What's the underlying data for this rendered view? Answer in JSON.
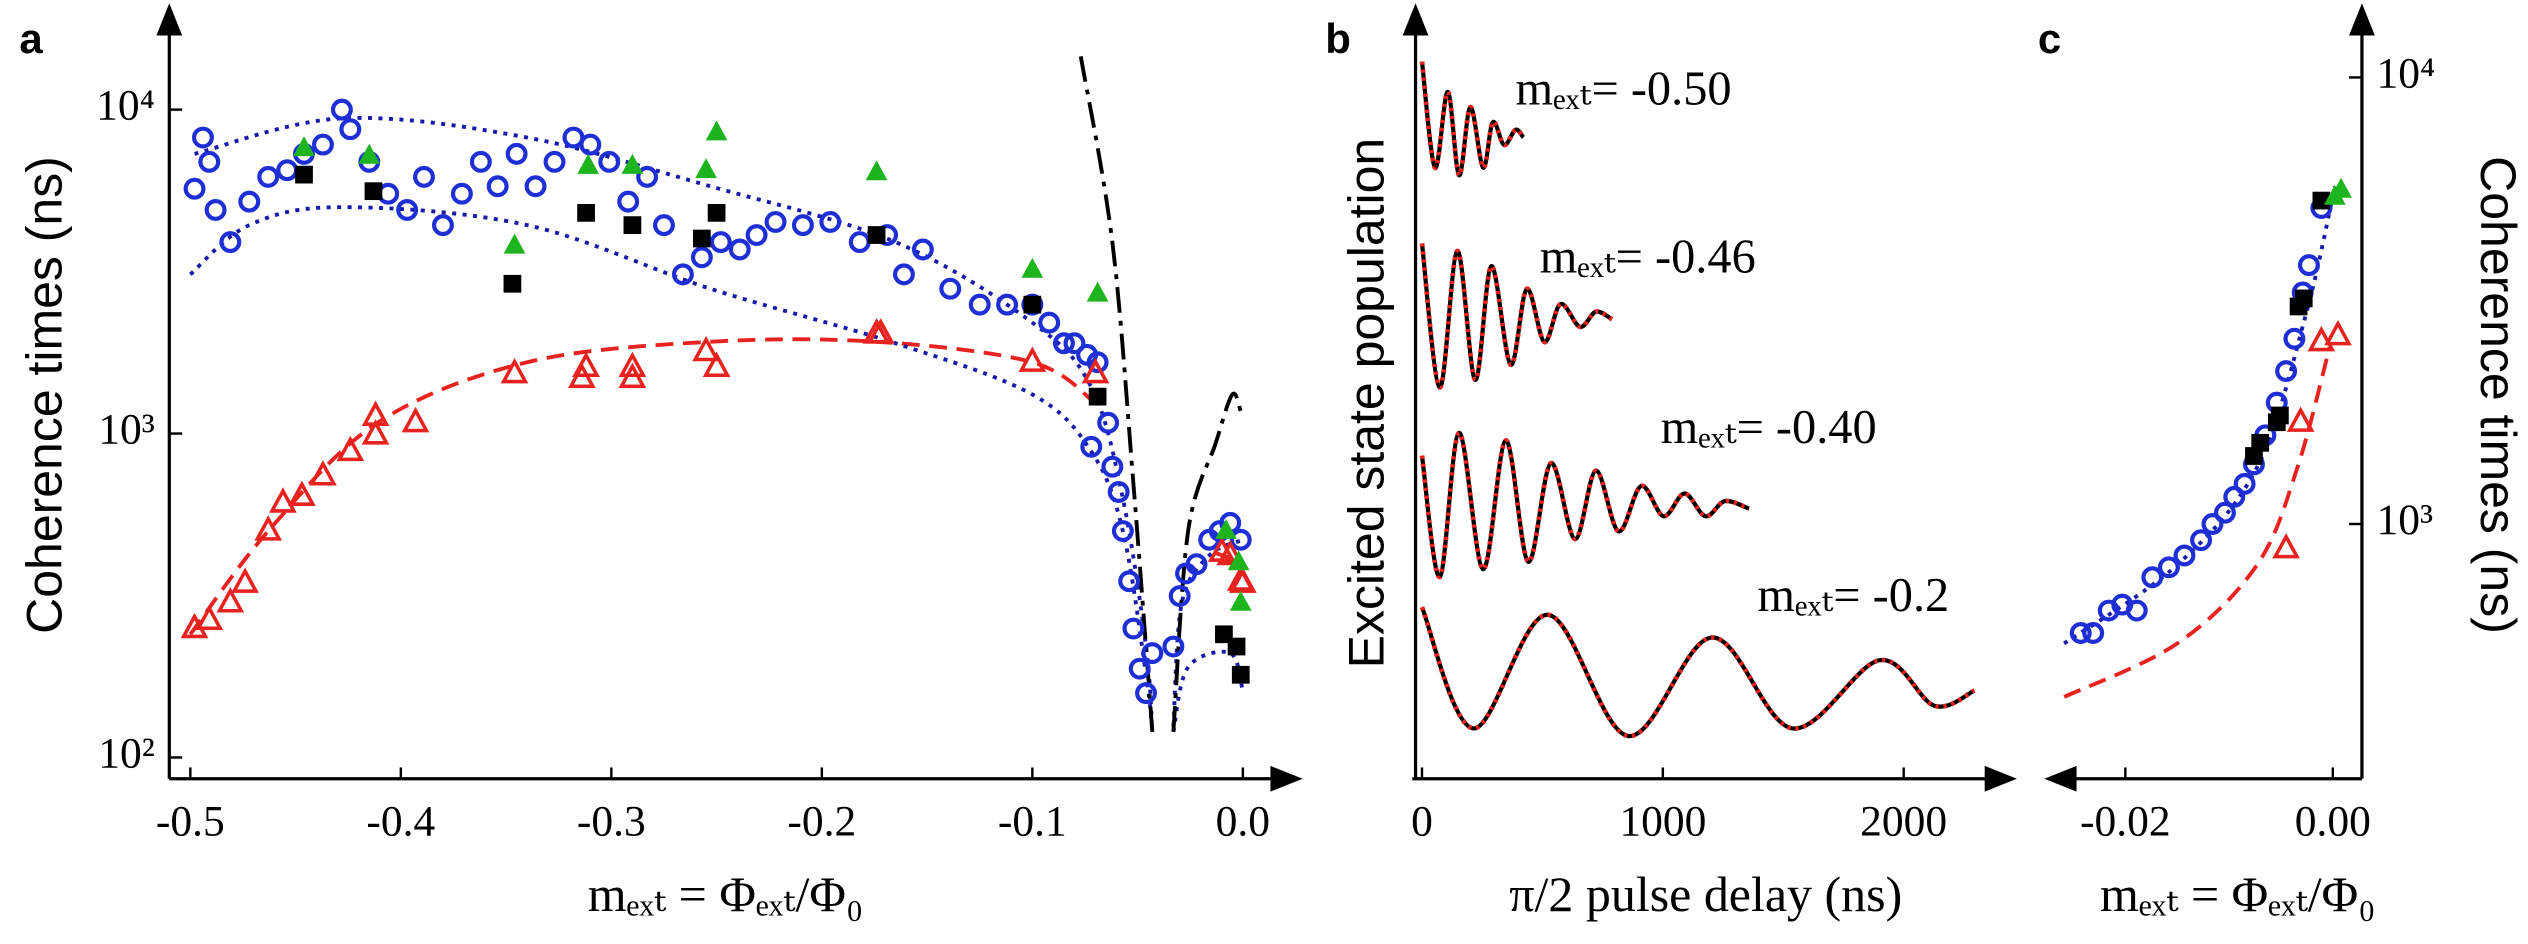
{
  "chart_data": [
    {
      "type": "scatter",
      "label": "a",
      "y_label": "Coherence times (ns)",
      "x_label": "mₑₓₜ = Φₑₓₜ/Φ₀",
      "xlim": [
        -0.51,
        0.02
      ],
      "ylim": [
        90,
        20000
      ],
      "ylog": true,
      "xticks": [
        -0.5,
        -0.4,
        -0.3,
        -0.2,
        -0.1,
        {
          "value": 0,
          "label": "0.0"
        }
      ],
      "yticks": [
        {
          "value": 100,
          "label": "10²"
        },
        {
          "value": 1000,
          "label": "10³"
        },
        {
          "value": 10000,
          "label": "10⁴"
        }
      ],
      "series": [
        {
          "color": "#e8231f",
          "line": "dashed",
          "x": [
            -0.5,
            -0.463,
            -0.411,
            -0.34,
            -0.253,
            -0.174,
            -0.1,
            -0.07,
            -0.03,
            -0.014,
            0
          ],
          "values": [
            240,
            500,
            1080,
            1660,
            1920,
            1920,
            1660,
            1240,
            null,
            430,
            400
          ]
        },
        {
          "color": "#1a1aa8",
          "line": "dotted",
          "x": [
            -0.498,
            -0.428,
            -0.34,
            -0.253,
            -0.165,
            -0.1,
            -0.072,
            -0.057,
            -0.046,
            -0.043,
            -0.038,
            -0.033,
            -0.029,
            -0.016,
            0
          ],
          "values": [
            7300,
            9400,
            8200,
            5800,
            3900,
            2200,
            1390,
            630,
            220,
            120,
            null,
            125,
            300,
            420,
            470
          ]
        },
        {
          "color": "#1a1aa8",
          "line": "dotted",
          "x": [
            -0.5,
            -0.472,
            -0.428,
            -0.34,
            -0.253,
            -0.165,
            -0.1,
            -0.072,
            -0.057,
            -0.046,
            -0.043,
            -0.038,
            -0.033,
            -0.026,
            -0.006,
            0
          ],
          "values": [
            3100,
            4400,
            5000,
            4400,
            2800,
            1900,
            1320,
            880,
            500,
            180,
            120,
            null,
            120,
            190,
            210,
            160
          ]
        },
        {
          "color": "#000000",
          "line": "dashdot",
          "x": [
            -0.077,
            -0.062,
            -0.052,
            -0.043,
            -0.038,
            -0.033,
            -0.026,
            -0.013,
            -0.005,
            -0.001
          ],
          "values": [
            14600,
            3900,
            700,
            120,
            null,
            120,
            500,
            930,
            1320,
            1170
          ]
        },
        {
          "color": "#1f2fd6",
          "marker": "circle-open",
          "x": [
            -0.498,
            -0.494,
            -0.491,
            -0.488,
            -0.481,
            -0.472,
            -0.463,
            -0.454,
            -0.446,
            -0.437,
            -0.428,
            -0.424,
            -0.415,
            -0.406,
            -0.397,
            -0.389,
            -0.38,
            -0.371,
            -0.362,
            -0.354,
            -0.345,
            -0.336,
            -0.327,
            -0.318,
            -0.31,
            -0.301,
            -0.292,
            -0.283,
            -0.275,
            -0.266,
            -0.257,
            -0.248,
            -0.239,
            -0.231,
            -0.222,
            -0.209,
            -0.196,
            -0.182,
            -0.169,
            -0.161,
            -0.152,
            -0.139,
            -0.125,
            -0.112,
            -0.1,
            -0.092,
            -0.085,
            -0.08,
            -0.074,
            -0.069,
            -0.072,
            -0.064,
            -0.062,
            -0.059,
            -0.057,
            -0.054,
            -0.052,
            -0.049,
            -0.046,
            -0.043,
            -0.033,
            -0.03,
            -0.027,
            -0.022,
            -0.016,
            -0.011,
            -0.006,
            -0.001
          ],
          "values": [
            5700,
            8200,
            6900,
            4900,
            3900,
            5200,
            6200,
            6500,
            7300,
            7800,
            10000,
            8700,
            6900,
            5500,
            4900,
            6200,
            4400,
            5500,
            6900,
            5800,
            7300,
            5800,
            6900,
            8200,
            7800,
            6900,
            5200,
            6200,
            4400,
            3100,
            3500,
            3900,
            3700,
            4100,
            4500,
            4400,
            4500,
            3900,
            4100,
            3100,
            3700,
            2800,
            2500,
            2500,
            2500,
            2200,
            1900,
            1900,
            1750,
            1660,
            910,
            1080,
            790,
            660,
            500,
            350,
            250,
            188,
            158,
            210,
            220,
            315,
            370,
            395,
            470,
            500,
            530,
            470
          ]
        },
        {
          "color": "#e8231f",
          "marker": "triangle-open",
          "x": [
            -0.498,
            -0.491,
            -0.481,
            -0.474,
            -0.463,
            -0.456,
            -0.447,
            -0.437,
            -0.424,
            -0.412,
            -0.412,
            -0.393,
            -0.346,
            -0.314,
            -0.312,
            -0.29,
            -0.29,
            -0.255,
            -0.25,
            -0.174,
            -0.172,
            -0.1,
            -0.07,
            -0.01,
            -0.006,
            -0.001,
            0
          ],
          "values": [
            250,
            265,
            300,
            345,
            500,
            610,
            640,
            740,
            880,
            1130,
            990,
            1080,
            1530,
            1480,
            1600,
            1480,
            1600,
            1790,
            1600,
            2030,
            2030,
            1660,
            1530,
            430,
            420,
            350,
            345
          ]
        },
        {
          "color": "#000000",
          "marker": "square",
          "x": [
            -0.446,
            -0.413,
            -0.347,
            -0.312,
            -0.29,
            -0.257,
            -0.25,
            -0.174,
            -0.1,
            -0.069,
            -0.009,
            -0.003,
            -0.001
          ],
          "values": [
            6300,
            5600,
            2900,
            4800,
            4400,
            4000,
            4800,
            4100,
            2500,
            1300,
            240,
            220,
            180
          ]
        },
        {
          "color": "#1eb41e",
          "marker": "triangle",
          "x": [
            -0.446,
            -0.415,
            -0.346,
            -0.311,
            -0.29,
            -0.255,
            -0.25,
            -0.174,
            -0.1,
            -0.069,
            -0.008,
            -0.002,
            -0.001
          ],
          "values": [
            7600,
            7200,
            3800,
            6700,
            6700,
            6500,
            8500,
            6400,
            3200,
            2700,
            500,
            400,
            300
          ]
        }
      ]
    },
    {
      "type": "line",
      "label": "b",
      "y_label": "Excited state population",
      "x_label": "π/2 pulse delay (ns)",
      "xlim": [
        0,
        2430
      ],
      "ylim": [
        0,
        1
      ],
      "xticks": [
        0,
        1000,
        2000
      ],
      "fit_color": "#000000",
      "series": [
        {
          "name": "mₑₓₜ= -0.50",
          "color": "#e8231f",
          "x": [
            0,
            54,
            107,
            154,
            201,
            254,
            294,
            341,
            388,
            421
          ],
          "values": [
            0.94,
            0.8,
            0.9,
            0.79,
            0.88,
            0.8,
            0.86,
            0.83,
            0.85,
            0.84
          ]
        },
        {
          "name": "mₑₓₜ= -0.46",
          "color": "#e8231f",
          "x": [
            0,
            74,
            147,
            221,
            288,
            368,
            435,
            508,
            575,
            656,
            722,
            789
          ],
          "values": [
            0.7,
            0.51,
            0.69,
            0.52,
            0.67,
            0.54,
            0.64,
            0.57,
            0.62,
            0.59,
            0.61,
            0.6
          ]
        },
        {
          "name": "mₑₓₜ= -0.40",
          "color": "#e8231f",
          "x": [
            0,
            74,
            154,
            254,
            348,
            441,
            535,
            635,
            722,
            816,
            910,
            1003,
            1090,
            1177,
            1258,
            1358
          ],
          "values": [
            0.42,
            0.26,
            0.45,
            0.27,
            0.44,
            0.28,
            0.41,
            0.31,
            0.4,
            0.32,
            0.38,
            0.34,
            0.37,
            0.34,
            0.36,
            0.35
          ]
        },
        {
          "name": "mₑₓₜ= -0.2",
          "color": "#e8231f",
          "x": [
            0,
            214,
            522,
            856,
            1204,
            1538,
            1900,
            2127,
            2294
          ],
          "values": [
            0.22,
            0.06,
            0.21,
            0.05,
            0.18,
            0.06,
            0.15,
            0.09,
            0.11
          ]
        }
      ]
    },
    {
      "type": "scatter",
      "label": "c",
      "y_label": "Coherence times (ns)",
      "x_label": "mₑₓₜ = Φₑₓₜ/Φ₀",
      "xlim": [
        -0.0275,
        0.0025
      ],
      "ylim": [
        275,
        14300
      ],
      "ylog": true,
      "xticks": [
        -0.02,
        {
          "value": 0,
          "label": "0.00"
        }
      ],
      "yticks": [
        {
          "value": 1000,
          "label": "10³"
        },
        {
          "value": 10000,
          "label": "10⁴"
        }
      ],
      "series": [
        {
          "color": "#e8231f",
          "line": "dashed",
          "x": [
            -0.0259,
            -0.015,
            -0.0073,
            -0.0034,
            -0.0003
          ],
          "values": [
            410,
            540,
            810,
            1340,
            2490
          ]
        },
        {
          "color": "#1a1aa8",
          "line": "dotted",
          "x": [
            -0.0259,
            -0.015,
            -0.0073,
            -0.0026,
            0.0002
          ],
          "values": [
            540,
            810,
            1340,
            2940,
            5700
          ]
        },
        {
          "color": "#1f2fd6",
          "marker": "circle-open",
          "x": [
            -0.0243,
            -0.0231,
            -0.0216,
            -0.0203,
            -0.0189,
            -0.0174,
            -0.0158,
            -0.0143,
            -0.0127,
            -0.0116,
            -0.0104,
            -0.0095,
            -0.0085,
            -0.0076,
            -0.0065,
            -0.0054,
            -0.0045,
            -0.0037,
            -0.0029,
            -0.0023,
            -0.0011
          ],
          "values": [
            570,
            570,
            640,
            660,
            640,
            760,
            800,
            850,
            920,
            1000,
            1060,
            1150,
            1230,
            1360,
            1580,
            1870,
            2200,
            2600,
            3300,
            3800,
            5100
          ]
        },
        {
          "color": "#e8231f",
          "marker": "triangle-open",
          "x": [
            -0.0045,
            -0.0031,
            -0.0011,
            0.0005
          ],
          "values": [
            880,
            1690,
            2560,
            2640
          ]
        },
        {
          "color": "#000000",
          "marker": "square",
          "x": [
            -0.0076,
            -0.007,
            -0.0054,
            -0.0051,
            -0.0033,
            -0.0028,
            -0.0011
          ],
          "values": [
            1420,
            1520,
            1690,
            1750,
            3070,
            3200,
            5300
          ]
        },
        {
          "color": "#1eb41e",
          "marker": "triangle",
          "x": [
            0.0002,
            0.0008
          ],
          "values": [
            5400,
            5600
          ]
        }
      ]
    }
  ]
}
